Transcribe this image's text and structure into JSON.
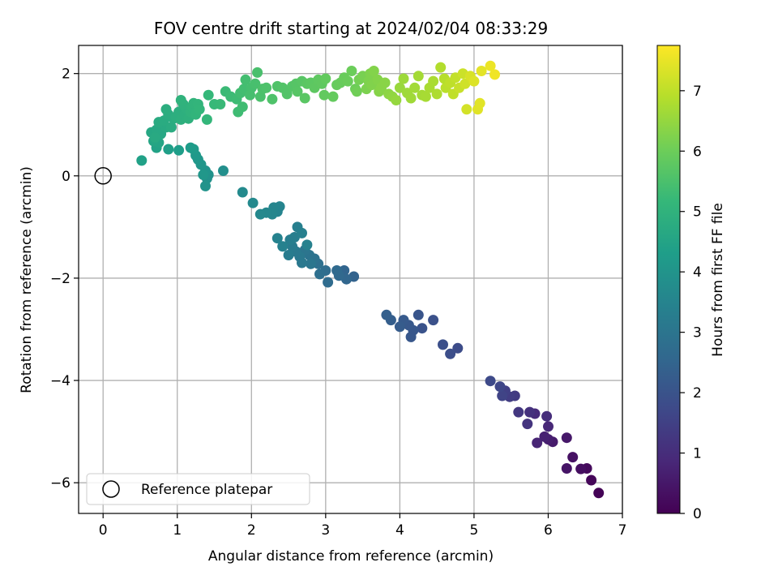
{
  "chart_data": {
    "type": "scatter",
    "title": "FOV centre drift starting at 2024/02/04 08:33:29",
    "xlabel": "Angular distance from reference (arcmin)",
    "ylabel": "Rotation from reference (arcmin)",
    "xlim": [
      -0.33,
      7.0
    ],
    "ylim": [
      -6.6,
      2.55
    ],
    "xticks": [
      "0",
      "1",
      "2",
      "3",
      "4",
      "5",
      "6",
      "7"
    ],
    "xtick_values": [
      0,
      1,
      2,
      3,
      4,
      5,
      6,
      7
    ],
    "yticks": [
      "−6",
      "−4",
      "−2",
      "0",
      "2"
    ],
    "ytick_values": [
      -6,
      -4,
      -2,
      0,
      2
    ],
    "grid": true,
    "legend": {
      "placement": "lower-left",
      "entries": [
        "Reference platepar"
      ]
    },
    "reference_point": {
      "x": 0,
      "y": 0
    },
    "colorbar": {
      "label": "Hours from first FF file",
      "range": [
        0,
        7.75
      ],
      "ticks": [
        "0",
        "1",
        "2",
        "3",
        "4",
        "5",
        "6",
        "7"
      ],
      "tick_values": [
        0,
        1,
        2,
        3,
        4,
        5,
        6,
        7
      ],
      "colormap": "viridis"
    },
    "colormap_stops": [
      "#440154",
      "#482878",
      "#3e4989",
      "#31688e",
      "#26828e",
      "#1f9e89",
      "#35b779",
      "#6ece58",
      "#b5de2b",
      "#fde725"
    ],
    "points": [
      [
        6.68,
        -6.2,
        0.05
      ],
      [
        6.58,
        -5.95,
        0.12
      ],
      [
        6.52,
        -5.72,
        0.2
      ],
      [
        6.44,
        -5.73,
        0.28
      ],
      [
        6.33,
        -5.5,
        0.35
      ],
      [
        6.25,
        -5.72,
        0.42
      ],
      [
        6.25,
        -5.12,
        0.5
      ],
      [
        6.06,
        -5.2,
        0.58
      ],
      [
        6.0,
        -5.15,
        0.65
      ],
      [
        5.95,
        -5.1,
        0.72
      ],
      [
        5.85,
        -5.22,
        0.8
      ],
      [
        6.0,
        -4.9,
        0.88
      ],
      [
        5.82,
        -4.65,
        0.95
      ],
      [
        5.98,
        -4.7,
        1.02
      ],
      [
        5.75,
        -4.62,
        1.1
      ],
      [
        5.72,
        -4.85,
        1.18
      ],
      [
        5.6,
        -4.62,
        1.26
      ],
      [
        5.55,
        -4.3,
        1.34
      ],
      [
        5.48,
        -4.32,
        1.42
      ],
      [
        5.42,
        -4.2,
        1.5
      ],
      [
        5.38,
        -4.3,
        1.58
      ],
      [
        5.35,
        -4.12,
        1.66
      ],
      [
        5.22,
        -4.01,
        1.74
      ],
      [
        4.78,
        -3.37,
        1.8
      ],
      [
        4.68,
        -3.48,
        1.85
      ],
      [
        4.58,
        -3.3,
        1.9
      ],
      [
        4.45,
        -2.82,
        1.95
      ],
      [
        4.3,
        -2.98,
        2.0
      ],
      [
        4.25,
        -2.72,
        2.05
      ],
      [
        4.18,
        -3.02,
        2.1
      ],
      [
        4.15,
        -3.15,
        2.12
      ],
      [
        4.12,
        -2.92,
        2.15
      ],
      [
        4.05,
        -2.82,
        2.2
      ],
      [
        4.0,
        -2.95,
        2.25
      ],
      [
        3.88,
        -2.82,
        2.3
      ],
      [
        3.82,
        -2.72,
        2.35
      ],
      [
        3.38,
        -1.97,
        2.45
      ],
      [
        3.25,
        -1.85,
        2.5
      ],
      [
        3.28,
        -2.02,
        2.55
      ],
      [
        3.18,
        -1.95,
        2.6
      ],
      [
        3.15,
        -1.85,
        2.65
      ],
      [
        3.03,
        -2.08,
        2.7
      ],
      [
        3.0,
        -1.85,
        2.75
      ],
      [
        2.92,
        -1.92,
        2.8
      ],
      [
        2.9,
        -1.72,
        2.85
      ],
      [
        2.85,
        -1.62,
        2.9
      ],
      [
        2.78,
        -1.55,
        2.95
      ],
      [
        2.72,
        -1.45,
        3.0
      ],
      [
        2.8,
        -1.72,
        3.05
      ],
      [
        2.68,
        -1.7,
        3.1
      ],
      [
        2.65,
        -1.58,
        3.12
      ],
      [
        2.6,
        -1.48,
        3.15
      ],
      [
        2.55,
        -1.38,
        3.2
      ],
      [
        2.5,
        -1.55,
        3.25
      ],
      [
        2.52,
        -1.25,
        3.3
      ],
      [
        2.58,
        -1.2,
        3.32
      ],
      [
        2.62,
        -1.0,
        3.35
      ],
      [
        2.68,
        -1.12,
        3.38
      ],
      [
        2.75,
        -1.35,
        3.4
      ],
      [
        2.42,
        -1.38,
        3.42
      ],
      [
        2.35,
        -1.22,
        3.45
      ],
      [
        2.38,
        -0.6,
        3.5
      ],
      [
        2.35,
        -0.7,
        3.52
      ],
      [
        2.3,
        -0.62,
        3.55
      ],
      [
        2.28,
        -0.75,
        3.58
      ],
      [
        2.2,
        -0.72,
        3.6
      ],
      [
        2.12,
        -0.75,
        3.62
      ],
      [
        2.02,
        -0.53,
        3.65
      ],
      [
        1.88,
        -0.32,
        3.7
      ],
      [
        1.62,
        0.1,
        3.85
      ],
      [
        1.4,
        -0.05,
        3.9
      ],
      [
        1.42,
        0.02,
        3.95
      ],
      [
        1.38,
        -0.2,
        3.98
      ],
      [
        1.38,
        0.1,
        4.0
      ],
      [
        1.32,
        0.22,
        4.05
      ],
      [
        1.35,
        0.02,
        4.08
      ],
      [
        1.28,
        0.32,
        4.1
      ],
      [
        1.25,
        0.4,
        4.15
      ],
      [
        1.22,
        0.52,
        4.2
      ],
      [
        1.18,
        0.55,
        4.25
      ],
      [
        1.02,
        0.5,
        4.3
      ],
      [
        0.88,
        0.52,
        4.35
      ],
      [
        0.52,
        0.3,
        4.4
      ],
      [
        0.72,
        0.55,
        4.45
      ],
      [
        0.75,
        0.65,
        4.5
      ],
      [
        0.68,
        0.68,
        4.55
      ],
      [
        0.78,
        0.82,
        4.6
      ],
      [
        0.65,
        0.85,
        4.62
      ],
      [
        0.72,
        0.9,
        4.65
      ],
      [
        0.7,
        0.75,
        4.68
      ],
      [
        0.85,
        0.95,
        4.7
      ],
      [
        0.75,
        1.05,
        4.72
      ],
      [
        0.82,
        1.08,
        4.74
      ],
      [
        0.92,
        0.95,
        4.76
      ],
      [
        0.95,
        1.12,
        4.78
      ],
      [
        0.88,
        1.2,
        4.8
      ],
      [
        0.85,
        1.3,
        4.82
      ],
      [
        0.98,
        1.15,
        4.84
      ],
      [
        1.02,
        1.25,
        4.86
      ],
      [
        1.05,
        1.1,
        4.88
      ],
      [
        1.1,
        1.2,
        4.9
      ],
      [
        1.12,
        1.32,
        4.92
      ],
      [
        1.15,
        1.12,
        4.94
      ],
      [
        1.08,
        1.4,
        4.96
      ],
      [
        1.05,
        1.48,
        4.98
      ],
      [
        1.18,
        1.25,
        5.0
      ],
      [
        1.2,
        1.35,
        5.02
      ],
      [
        1.22,
        1.42,
        5.04
      ],
      [
        1.25,
        1.2,
        5.06
      ],
      [
        1.28,
        1.4,
        5.08
      ],
      [
        1.3,
        1.3,
        5.1
      ],
      [
        1.4,
        1.1,
        5.12
      ],
      [
        1.42,
        1.58,
        5.15
      ],
      [
        1.5,
        1.4,
        5.2
      ],
      [
        1.58,
        1.4,
        5.22
      ],
      [
        1.65,
        1.65,
        5.25
      ],
      [
        1.72,
        1.55,
        5.28
      ],
      [
        1.8,
        1.5,
        5.3
      ],
      [
        1.82,
        1.25,
        5.32
      ],
      [
        1.88,
        1.35,
        5.34
      ],
      [
        1.85,
        1.62,
        5.36
      ],
      [
        1.9,
        1.7,
        5.38
      ],
      [
        1.92,
        1.88,
        5.4
      ],
      [
        2.0,
        1.72,
        5.42
      ],
      [
        1.98,
        1.58,
        5.44
      ],
      [
        2.05,
        1.8,
        5.46
      ],
      [
        2.08,
        2.02,
        5.48
      ],
      [
        2.12,
        1.55,
        5.5
      ],
      [
        2.15,
        1.7,
        5.52
      ],
      [
        2.2,
        1.72,
        5.54
      ],
      [
        2.28,
        1.5,
        5.56
      ],
      [
        2.35,
        1.75,
        5.58
      ],
      [
        2.42,
        1.72,
        5.6
      ],
      [
        2.48,
        1.6,
        5.62
      ],
      [
        2.55,
        1.75,
        5.64
      ],
      [
        2.6,
        1.8,
        5.66
      ],
      [
        2.62,
        1.65,
        5.68
      ],
      [
        2.68,
        1.85,
        5.7
      ],
      [
        2.72,
        1.52,
        5.72
      ],
      [
        2.75,
        1.8,
        5.74
      ],
      [
        2.8,
        1.82,
        5.76
      ],
      [
        2.85,
        1.72,
        5.78
      ],
      [
        2.9,
        1.88,
        5.8
      ],
      [
        2.95,
        1.8,
        5.82
      ],
      [
        2.98,
        1.58,
        5.84
      ],
      [
        3.0,
        1.9,
        5.86
      ],
      [
        3.1,
        1.55,
        5.88
      ],
      [
        3.15,
        1.78,
        5.9
      ],
      [
        3.2,
        1.82,
        5.92
      ],
      [
        3.25,
        1.92,
        5.94
      ],
      [
        3.3,
        1.85,
        5.96
      ],
      [
        3.35,
        2.05,
        5.98
      ],
      [
        3.4,
        1.7,
        6.0
      ],
      [
        3.42,
        1.65,
        6.05
      ],
      [
        3.45,
        1.88,
        6.1
      ],
      [
        3.5,
        1.95,
        6.15
      ],
      [
        3.55,
        1.7,
        6.2
      ],
      [
        3.58,
        1.85,
        6.22
      ],
      [
        3.6,
        2.0,
        6.24
      ],
      [
        3.62,
        1.78,
        6.26
      ],
      [
        3.65,
        2.05,
        6.28
      ],
      [
        3.7,
        1.88,
        6.3
      ],
      [
        3.72,
        1.65,
        6.32
      ],
      [
        3.75,
        1.72,
        6.34
      ],
      [
        3.8,
        1.82,
        6.36
      ],
      [
        3.85,
        1.6,
        6.4
      ],
      [
        3.9,
        1.55,
        6.45
      ],
      [
        3.95,
        1.48,
        6.5
      ],
      [
        4.0,
        1.72,
        6.55
      ],
      [
        4.05,
        1.9,
        6.6
      ],
      [
        4.1,
        1.62,
        6.62
      ],
      [
        4.15,
        1.52,
        6.64
      ],
      [
        4.2,
        1.72,
        6.66
      ],
      [
        4.25,
        1.95,
        6.68
      ],
      [
        4.3,
        1.58,
        6.7
      ],
      [
        4.35,
        1.55,
        6.72
      ],
      [
        4.4,
        1.72,
        6.74
      ],
      [
        4.45,
        1.85,
        6.76
      ],
      [
        4.5,
        1.6,
        6.8
      ],
      [
        4.55,
        2.12,
        6.85
      ],
      [
        4.6,
        1.9,
        6.9
      ],
      [
        4.62,
        1.72,
        6.95
      ],
      [
        4.68,
        1.82,
        7.0
      ],
      [
        4.72,
        1.6,
        7.02
      ],
      [
        4.75,
        1.92,
        7.05
      ],
      [
        4.8,
        1.72,
        7.1
      ],
      [
        4.85,
        2.0,
        7.15
      ],
      [
        4.88,
        1.8,
        7.2
      ],
      [
        4.9,
        1.3,
        7.25
      ],
      [
        4.95,
        1.95,
        7.3
      ],
      [
        5.0,
        1.85,
        7.35
      ],
      [
        5.05,
        1.3,
        7.4
      ],
      [
        5.08,
        1.42,
        7.42
      ],
      [
        5.1,
        2.05,
        7.45
      ],
      [
        5.22,
        2.15,
        7.55
      ],
      [
        5.28,
        1.98,
        7.6
      ]
    ]
  }
}
